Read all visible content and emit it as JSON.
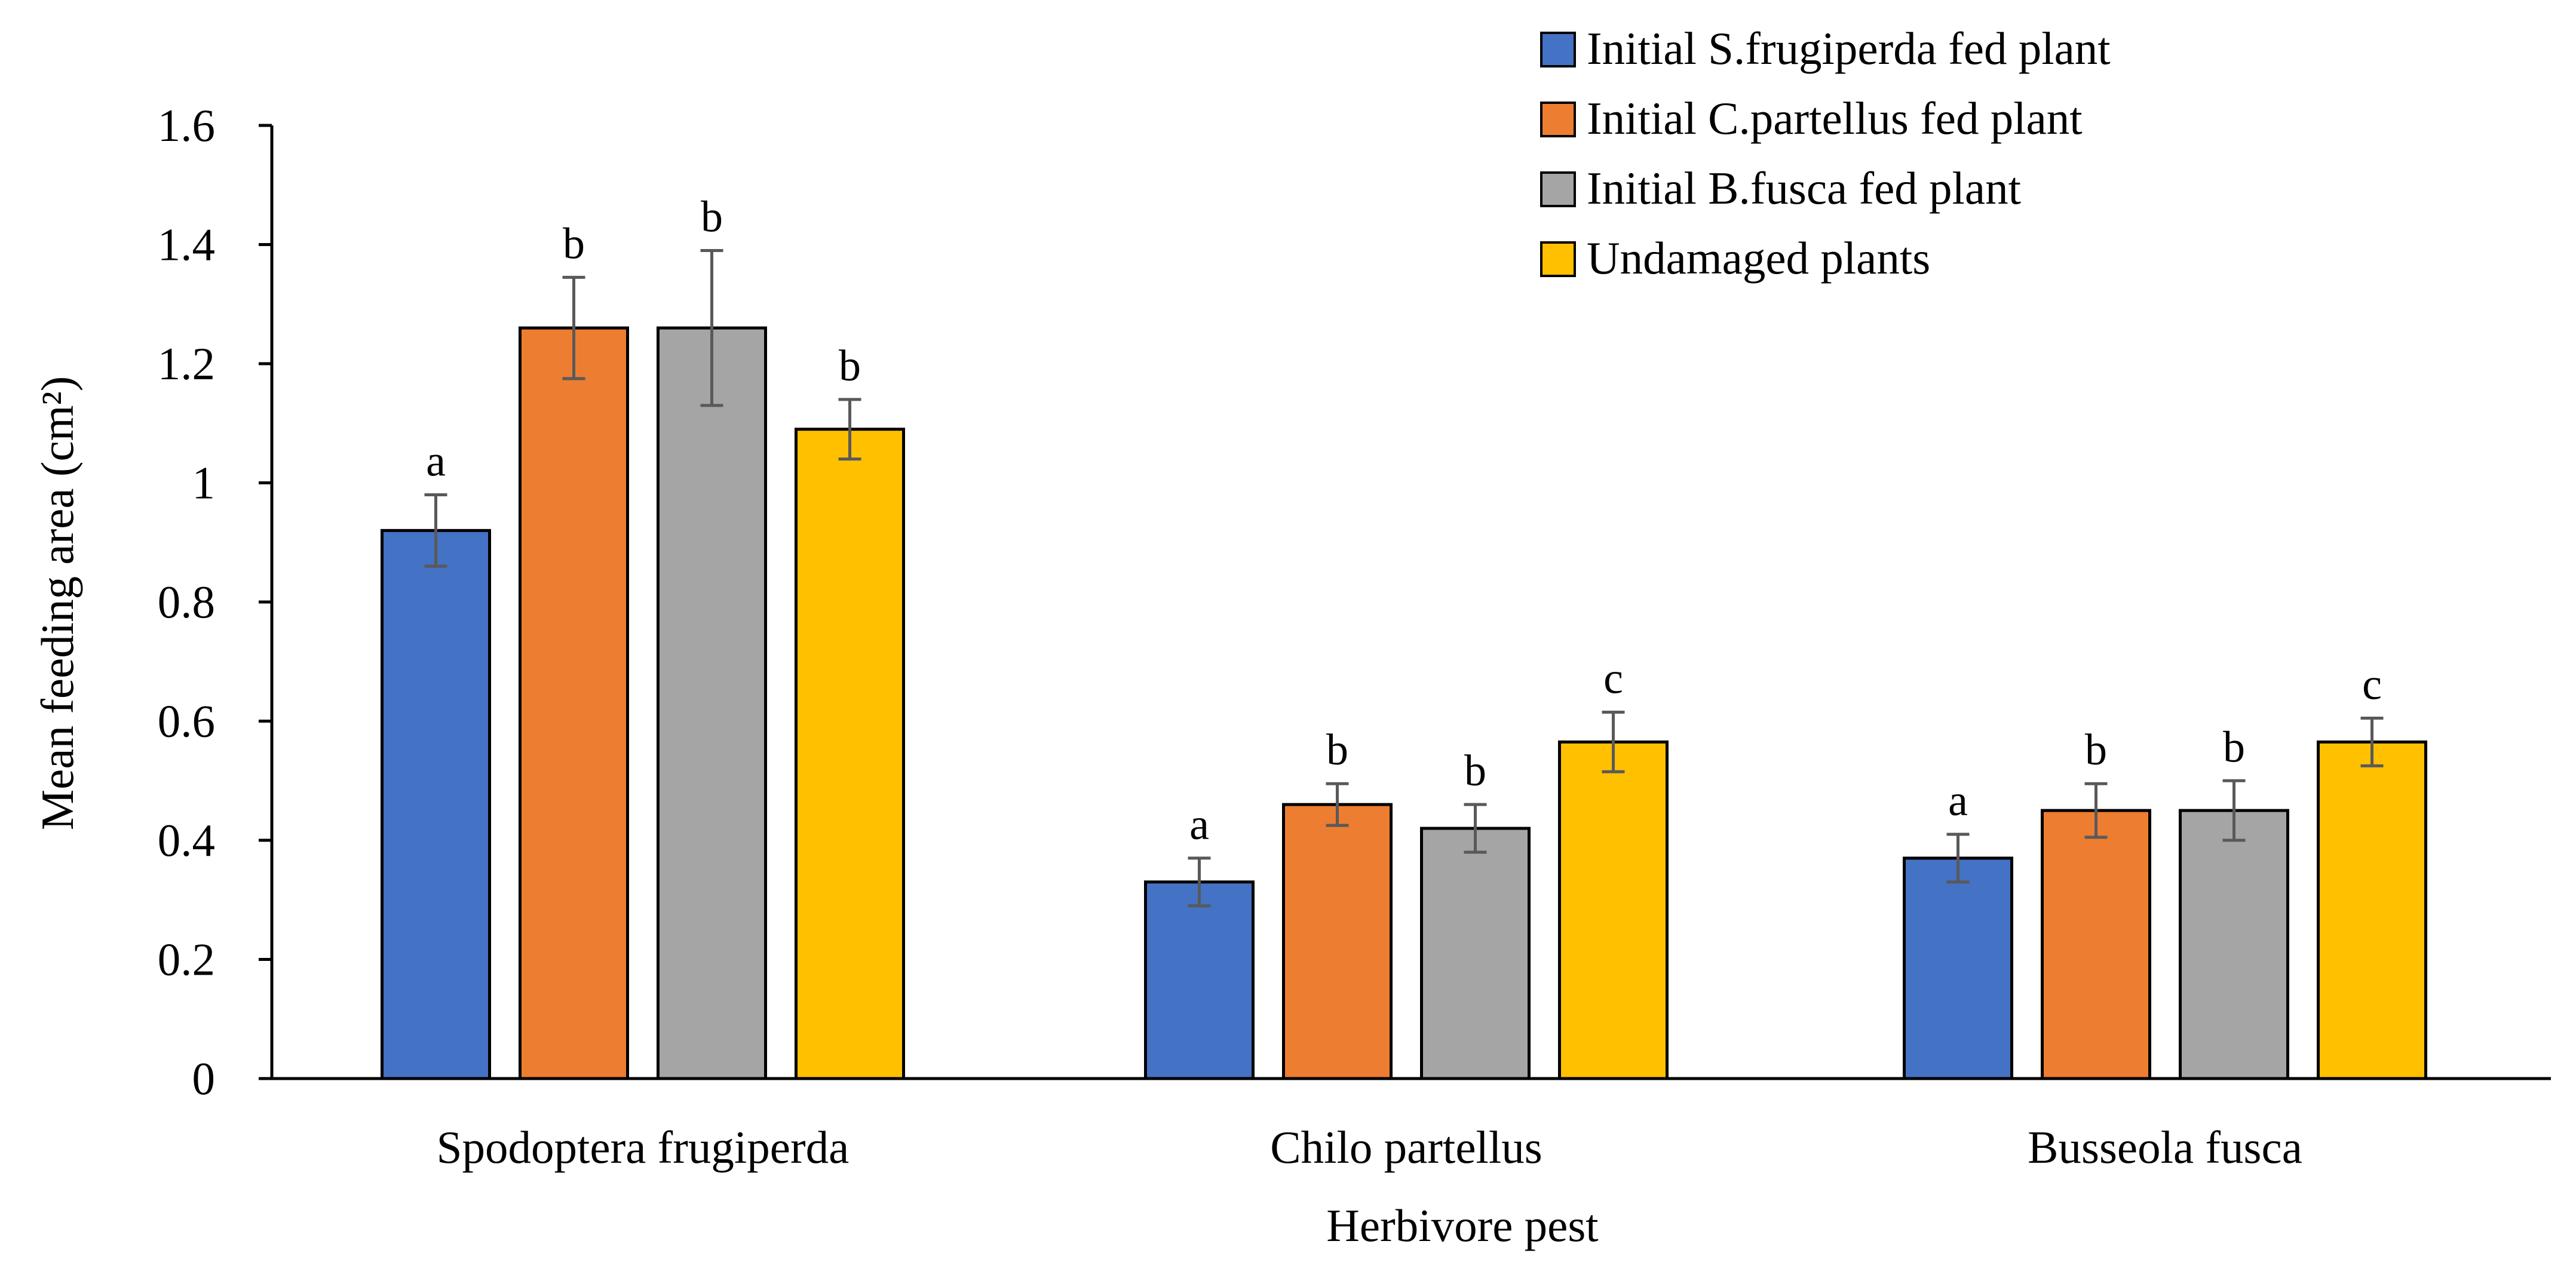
{
  "chart_data": {
    "type": "bar",
    "title": "",
    "xlabel": "Herbivore pest",
    "ylabel": "Mean feeding area (cm²)",
    "ylim": [
      0,
      1.6
    ],
    "yticks": [
      0,
      0.2,
      0.4,
      0.6,
      0.8,
      1.0,
      1.2,
      1.4,
      1.6
    ],
    "ytick_labels": [
      "0",
      "0.2",
      "0.4",
      "0.6",
      "0.8",
      "1",
      "1.2",
      "1.4",
      "1.6"
    ],
    "grid": false,
    "legend_position": "top-right",
    "categories": [
      "Spodoptera frugiperda",
      "Chilo partellus",
      "Busseola fusca"
    ],
    "series": [
      {
        "name": "Initial S.frugiperda fed plant",
        "color": "#4472C4",
        "values": [
          0.92,
          0.33,
          0.37
        ],
        "errors": [
          0.06,
          0.04,
          0.04
        ],
        "letters": [
          "a",
          "a",
          "a"
        ]
      },
      {
        "name": "Initial C.partellus fed plant",
        "color": "#ED7D31",
        "values": [
          1.26,
          0.46,
          0.45
        ],
        "errors": [
          0.085,
          0.035,
          0.045
        ],
        "letters": [
          "b",
          "b",
          "b"
        ]
      },
      {
        "name": "Initial B.fusca fed plant",
        "color": "#A5A5A5",
        "values": [
          1.26,
          0.42,
          0.45
        ],
        "errors": [
          0.13,
          0.04,
          0.05
        ],
        "letters": [
          "b",
          "b",
          "b"
        ]
      },
      {
        "name": "Undamaged plants",
        "color": "#FFC000",
        "values": [
          1.09,
          0.565,
          0.565
        ],
        "errors": [
          0.05,
          0.05,
          0.04
        ],
        "letters": [
          "b",
          "c",
          "c"
        ]
      }
    ]
  }
}
